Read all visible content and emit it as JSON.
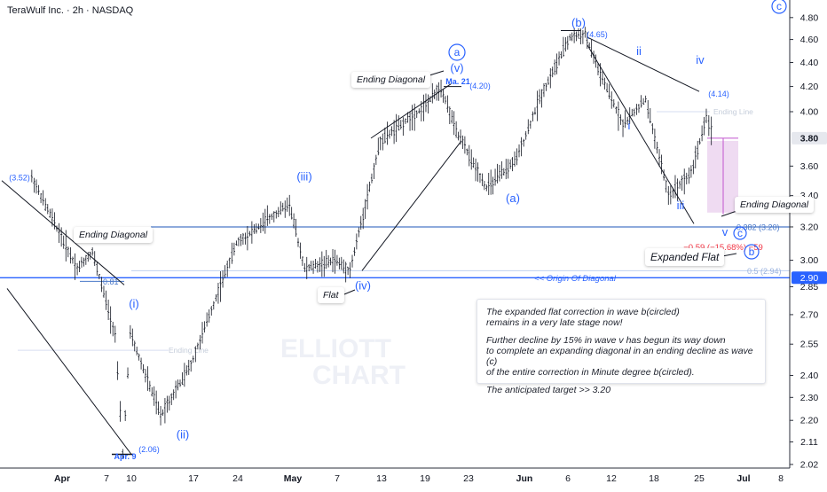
{
  "chart_data": {
    "type": "candlestick",
    "title": "TeraWulf Inc. · 2h · NASDAQ",
    "y_axis": {
      "scale": "log",
      "ticks": [
        "4.80",
        "4.60",
        "4.40",
        "4.20",
        "4.00",
        "3.80",
        "3.60",
        "3.40",
        "3.20",
        "3.00",
        "2.90",
        "2.85",
        "2.70",
        "2.55",
        "2.40",
        "2.30",
        "2.20",
        "2.11",
        "2.02"
      ],
      "current_price": "3.80",
      "marked_price": "2.90"
    },
    "x_axis": {
      "ticks": [
        "Apr",
        "7",
        "10",
        "17",
        "24",
        "May",
        "7",
        "13",
        "19",
        "23",
        "Jun",
        "6",
        "12",
        "18",
        "25",
        "Jul",
        "8"
      ]
    },
    "price_path": [
      {
        "date": "Mar 28",
        "price": 3.52
      },
      {
        "date": "Apr 3",
        "price": 2.95
      },
      {
        "date": "Apr 5",
        "price": 3.05
      },
      {
        "date": "Apr 8",
        "price": 2.6
      },
      {
        "date": "Apr 9",
        "price": 2.06
      },
      {
        "date": "Apr 10",
        "price": 2.6
      },
      {
        "date": "Apr 14",
        "price": 2.22
      },
      {
        "date": "Apr 18",
        "price": 2.45
      },
      {
        "date": "Apr 24",
        "price": 3.1
      },
      {
        "date": "May 1",
        "price": 3.35
      },
      {
        "date": "May 3",
        "price": 2.95
      },
      {
        "date": "May 7",
        "price": 3.0
      },
      {
        "date": "May 9",
        "price": 2.94
      },
      {
        "date": "May 13",
        "price": 3.78
      },
      {
        "date": "May 19",
        "price": 4.05
      },
      {
        "date": "May 21",
        "price": 4.2
      },
      {
        "date": "May 23",
        "price": 3.85
      },
      {
        "date": "May 27",
        "price": 3.45
      },
      {
        "date": "May 31",
        "price": 3.65
      },
      {
        "date": "Jun 3",
        "price": 4.1
      },
      {
        "date": "Jun 7",
        "price": 4.62
      },
      {
        "date": "Jun 9",
        "price": 4.65
      },
      {
        "date": "Jun 11",
        "price": 4.3
      },
      {
        "date": "Jun 14",
        "price": 3.9
      },
      {
        "date": "Jun 17",
        "price": 4.1
      },
      {
        "date": "Jun 20",
        "price": 3.4
      },
      {
        "date": "Jun 23",
        "price": 3.55
      },
      {
        "date": "Jun 25",
        "price": 3.96
      },
      {
        "date": "Jun 26",
        "price": 3.8
      }
    ],
    "wave_labels": [
      "(3.52)",
      "(i)",
      "(ii)",
      "(2.06)",
      "Apr. 9",
      "(iii)",
      "(iv)",
      "a",
      "(v)",
      "Ma. 21",
      "(4.20)",
      "(a)",
      "(b)",
      "(4.65)",
      "ii",
      "i",
      "iii",
      "iv",
      "(4.14)",
      "v",
      "c",
      "b",
      "c"
    ],
    "price_annotations": {
      "fib_382": "0.382 (3.20)",
      "fib_low": "0.5 (2.94)",
      "change": "−0.59 (−15.68%) −59",
      "level_081": "0.81",
      "faded_1": "Ending Line",
      "faded_2": "Ending Line"
    },
    "annotations": {
      "ending_diagonal_top": "Ending Diagonal",
      "ending_diagonal_left": "Ending Diagonal",
      "ending_diagonal_right": "Ending Diagonal",
      "flat": "Flat",
      "expanded_flat": "Expanded Flat",
      "origin": "<<  Origin Of Diagonal"
    },
    "note": {
      "p1": "The expanded flat correction in wave b(circled)\n remains in a very late stage now!",
      "p2": "Further decline by 15% in wave v has begun its way down\nto complete an expanding diagonal in an ending decline as wave (c)\nof the entire correction in Minute degree b(circled).",
      "p3": "The anticipated target >>  3.20"
    },
    "watermark": [
      "ELLIOTT",
      "CHART"
    ],
    "colors": {
      "candle": "#131722",
      "wave": "#2962ff",
      "level": "#4a78c8",
      "current_tag": "#131722",
      "marked_tag": "#2962ff",
      "change": "#f23645",
      "zone": "#e1bee7"
    },
    "grid": false
  }
}
